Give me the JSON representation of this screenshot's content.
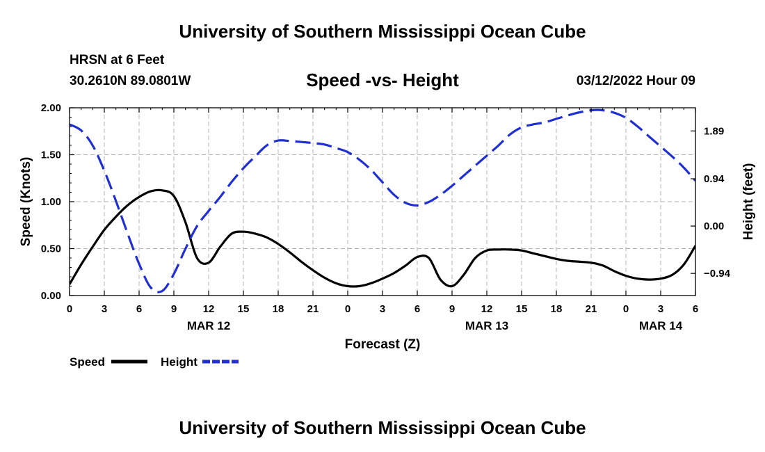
{
  "header": {
    "title": "University of Southern Mississippi Ocean Cube",
    "station": "HRSN at 6 Feet",
    "coordinates": "30.2610N  89.0801W",
    "chart_title": "Speed -vs- Height",
    "datetime": "03/12/2022 Hour 09"
  },
  "footer": {
    "title": "University of Southern Mississippi Ocean Cube"
  },
  "chart_data": {
    "type": "line",
    "title": "Speed -vs- Height",
    "xlabel": "Forecast (Z)",
    "ylabel": "Speed (Knots)",
    "y2label": "Height (feet)",
    "xlim": [
      0,
      54
    ],
    "ylim": [
      0,
      2.0
    ],
    "y2lim": [
      -1.38,
      2.35
    ],
    "x_ticks": [
      0,
      3,
      6,
      9,
      12,
      15,
      18,
      21,
      24,
      27,
      30,
      33,
      36,
      39,
      42,
      45,
      48,
      51,
      54
    ],
    "x_tick_labels": [
      "0",
      "3",
      "6",
      "9",
      "12",
      "15",
      "18",
      "21",
      "0",
      "3",
      "6",
      "9",
      "12",
      "15",
      "18",
      "21",
      "0",
      "3",
      "6"
    ],
    "y_ticks": [
      0.0,
      0.5,
      1.0,
      1.5,
      2.0
    ],
    "y_tick_labels": [
      "0.00",
      "0.50",
      "1.00",
      "1.50",
      "2.00"
    ],
    "y2_ticks": [
      -0.94,
      0.0,
      0.94,
      1.89
    ],
    "y2_tick_labels": [
      "−0.94",
      "0.00",
      "0.94",
      "1.89"
    ],
    "date_labels": [
      {
        "x": 12,
        "label": "MAR 12"
      },
      {
        "x": 36,
        "label": "MAR 13"
      },
      {
        "x": 51,
        "label": "MAR 14"
      }
    ],
    "grid": true,
    "legend": {
      "position": "bottom-left"
    },
    "series": [
      {
        "name": "Speed",
        "axis": "left",
        "color": "#000000",
        "dash": "solid",
        "x": [
          0,
          1,
          2,
          3,
          4,
          5,
          6,
          7,
          8,
          9,
          10,
          11,
          12,
          13,
          14,
          15,
          16,
          17,
          18,
          19,
          20,
          21,
          22,
          23,
          24,
          25,
          26,
          27,
          28,
          29,
          30,
          31,
          32,
          33,
          34,
          35,
          36,
          37,
          38,
          39,
          40,
          41,
          42,
          43,
          44,
          45,
          46,
          47,
          48,
          49,
          50,
          51,
          52,
          53,
          54
        ],
        "values": [
          0.12,
          0.33,
          0.52,
          0.7,
          0.84,
          0.96,
          1.05,
          1.11,
          1.12,
          1.06,
          0.78,
          0.4,
          0.35,
          0.52,
          0.66,
          0.68,
          0.66,
          0.62,
          0.55,
          0.46,
          0.36,
          0.27,
          0.19,
          0.13,
          0.1,
          0.1,
          0.13,
          0.18,
          0.24,
          0.32,
          0.41,
          0.4,
          0.17,
          0.1,
          0.22,
          0.4,
          0.48,
          0.49,
          0.49,
          0.48,
          0.45,
          0.42,
          0.39,
          0.37,
          0.36,
          0.35,
          0.32,
          0.26,
          0.21,
          0.18,
          0.17,
          0.18,
          0.22,
          0.33,
          0.53
        ]
      },
      {
        "name": "Height",
        "axis": "right",
        "color": "#1f2fd0",
        "dash": "dashed",
        "x": [
          0,
          1,
          2,
          3,
          4,
          5,
          6,
          7,
          8,
          9,
          10,
          11,
          12,
          13,
          14,
          15,
          16,
          17,
          18,
          19,
          20,
          21,
          22,
          23,
          24,
          25,
          26,
          27,
          28,
          29,
          30,
          31,
          32,
          33,
          34,
          35,
          36,
          37,
          38,
          39,
          40,
          41,
          42,
          43,
          44,
          45,
          46,
          47,
          48,
          49,
          50,
          51,
          52,
          53,
          54
        ],
        "values": [
          2.02,
          1.9,
          1.6,
          1.1,
          0.5,
          -0.14,
          -0.75,
          -1.22,
          -1.29,
          -0.95,
          -0.45,
          0.0,
          0.3,
          0.58,
          0.88,
          1.15,
          1.38,
          1.6,
          1.7,
          1.69,
          1.67,
          1.65,
          1.62,
          1.55,
          1.47,
          1.32,
          1.12,
          0.87,
          0.62,
          0.46,
          0.41,
          0.48,
          0.62,
          0.8,
          1.0,
          1.2,
          1.4,
          1.6,
          1.82,
          1.96,
          2.02,
          2.06,
          2.13,
          2.2,
          2.26,
          2.3,
          2.3,
          2.25,
          2.15,
          1.98,
          1.78,
          1.58,
          1.38,
          1.16,
          0.9
        ]
      }
    ]
  }
}
